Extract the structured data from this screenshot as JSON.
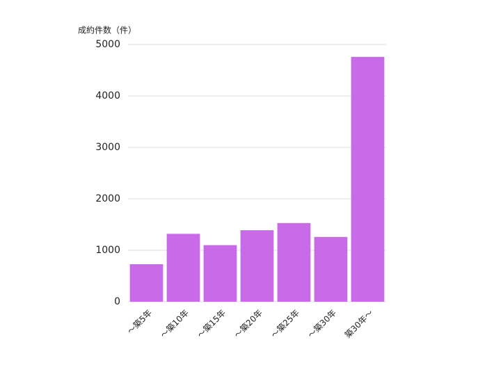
{
  "chart_data": {
    "type": "bar",
    "y_label": "成約件数（件）",
    "categories": [
      "～築5年",
      "～築10年",
      "～築15年",
      "～築20年",
      "～築25年",
      "～築30年",
      "築30年～"
    ],
    "values": [
      730,
      1320,
      1100,
      1390,
      1530,
      1260,
      4760
    ],
    "color": "#c96ae8",
    "ylim": [
      0,
      5000
    ],
    "yticks": [
      0,
      1000,
      2000,
      3000,
      4000,
      5000
    ],
    "grid": true
  }
}
